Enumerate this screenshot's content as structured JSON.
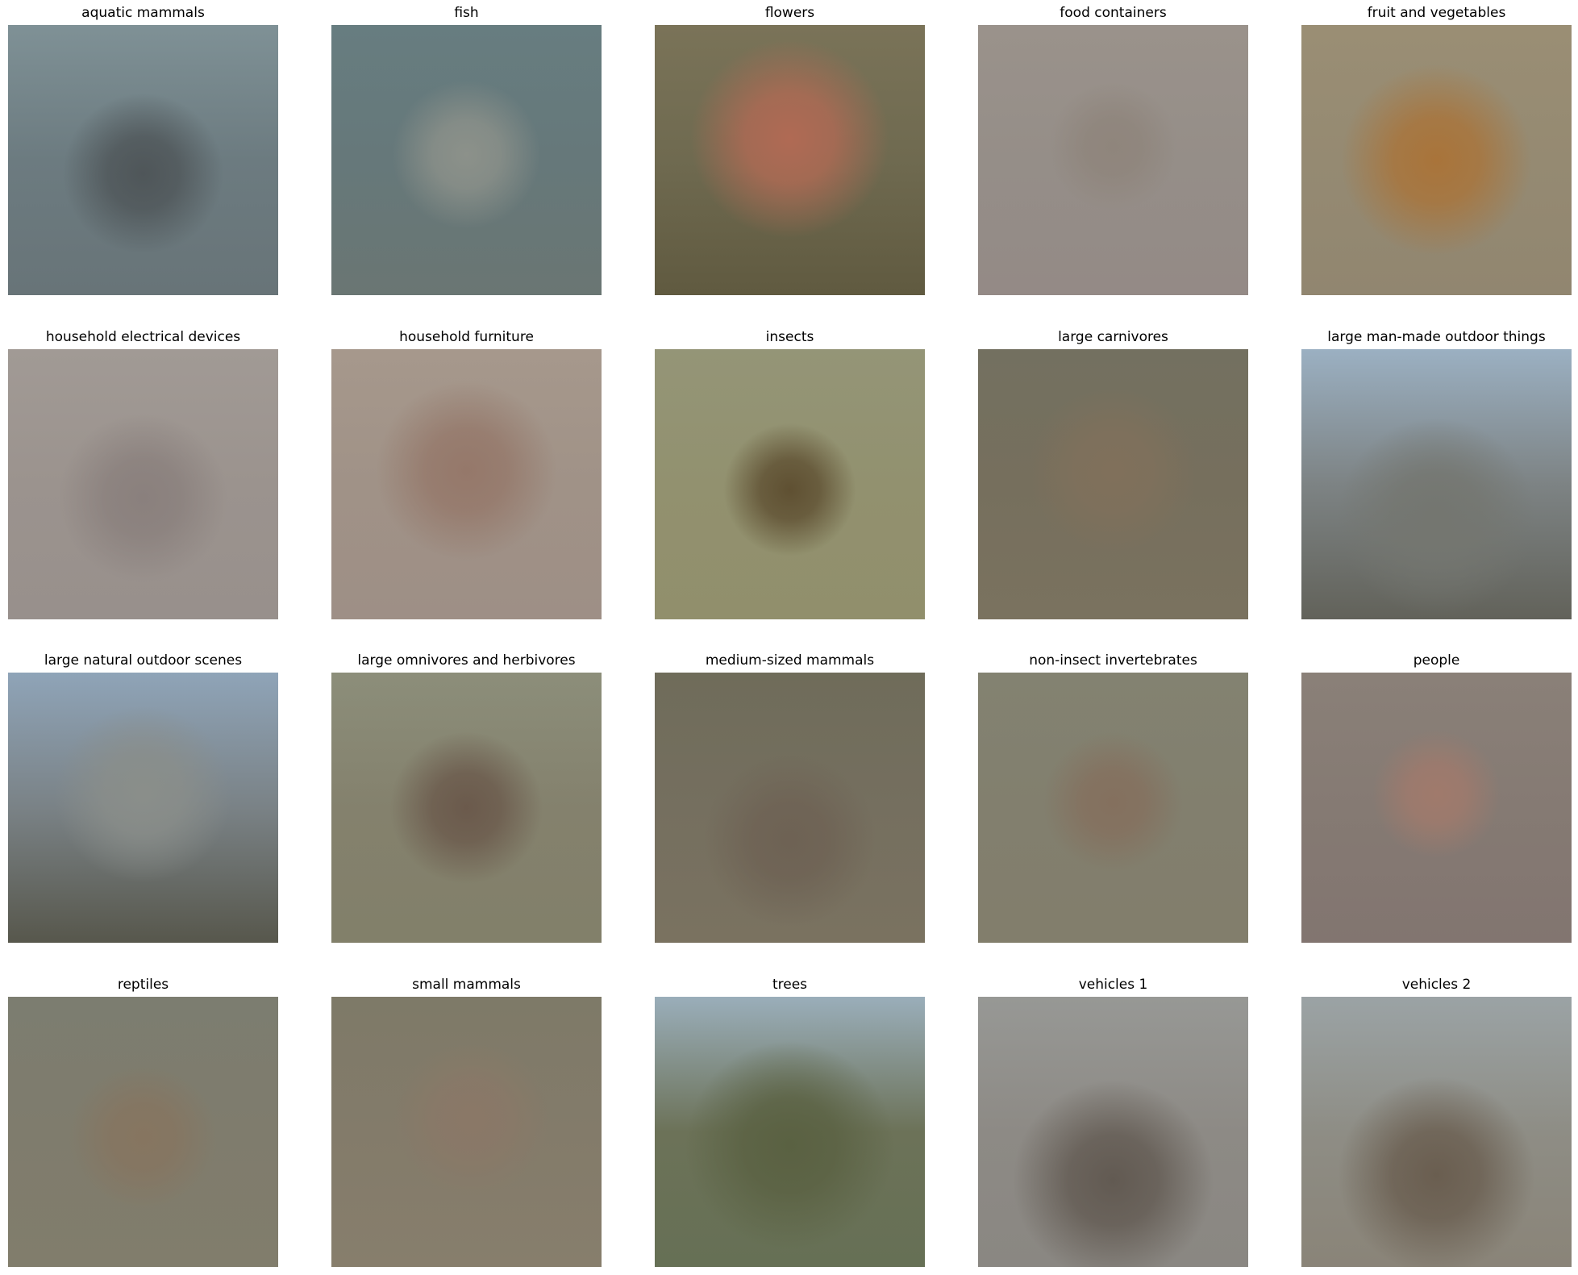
{
  "panels": [
    {
      "title": "aquatic mammals",
      "bg": "#6c7b80",
      "top": "#7f9196",
      "bottom": "#687478",
      "blob": "#4f5659",
      "blob_x": 50,
      "blob_y": 55,
      "blob_r": 40
    },
    {
      "title": "fish",
      "bg": "#66787a",
      "top": "#677d80",
      "bottom": "#6a7673",
      "blob": "#8c918a",
      "blob_x": 50,
      "blob_y": 48,
      "blob_r": 38
    },
    {
      "title": "flowers",
      "bg": "#6f6a50",
      "top": "#7a7358",
      "bottom": "#605a40",
      "blob": "#b06a54",
      "blob_x": 50,
      "blob_y": 42,
      "blob_r": 48
    },
    {
      "title": "food containers",
      "bg": "#958e88",
      "top": "#9a928b",
      "bottom": "#948a86",
      "blob": "#8f857c",
      "blob_x": 50,
      "blob_y": 45,
      "blob_r": 32
    },
    {
      "title": "fruit and vegetables",
      "bg": "#958a72",
      "top": "#9a8e74",
      "bottom": "#918670",
      "blob": "#a9743a",
      "blob_x": 50,
      "blob_y": 50,
      "blob_r": 50
    },
    {
      "title": "household electrical devices",
      "bg": "#9b938e",
      "top": "#a19a95",
      "bottom": "#98908c",
      "blob": "#8a807d",
      "blob_x": 50,
      "blob_y": 55,
      "blob_r": 42
    },
    {
      "title": "household furniture",
      "bg": "#a09287",
      "top": "#a6988c",
      "bottom": "#9e8f86",
      "blob": "#95786a",
      "blob_x": 50,
      "blob_y": 45,
      "blob_r": 45
    },
    {
      "title": "insects",
      "bg": "#92916f",
      "top": "#949577",
      "bottom": "#918f6c",
      "blob": "#5f5032",
      "blob_x": 50,
      "blob_y": 52,
      "blob_r": 34
    },
    {
      "title": "large carnivores",
      "bg": "#766f5d",
      "top": "#737060",
      "bottom": "#7a725f",
      "blob": "#80705b",
      "blob_x": 50,
      "blob_y": 45,
      "blob_r": 42
    },
    {
      "title": "large man-made outdoor things",
      "bg": "#7d8384",
      "top": "#9bb0c2",
      "bottom": "#62625a",
      "blob": "#747670",
      "blob_x": 50,
      "blob_y": 62,
      "blob_r": 46
    },
    {
      "title": "large natural outdoor scenes",
      "bg": "#7a8286",
      "top": "#8fa4b8",
      "bottom": "#57574c",
      "blob": "#8a8e8a",
      "blob_x": 50,
      "blob_y": 45,
      "blob_r": 44
    },
    {
      "title": "large omnivores and herbivores",
      "bg": "#84816d",
      "top": "#8c8e7a",
      "bottom": "#82806a",
      "blob": "#6b5a4c",
      "blob_x": 50,
      "blob_y": 50,
      "blob_r": 40
    },
    {
      "title": "medium-sized mammals",
      "bg": "#756f5f",
      "top": "#6f6c5a",
      "bottom": "#7a7260",
      "blob": "#6e6254",
      "blob_x": 50,
      "blob_y": 62,
      "blob_r": 40
    },
    {
      "title": "non-insect invertebrates",
      "bg": "#827f6e",
      "top": "#838271",
      "bottom": "#827e6c",
      "blob": "#84705e",
      "blob_x": 50,
      "blob_y": 48,
      "blob_r": 36
    },
    {
      "title": "people",
      "bg": "#857a73",
      "top": "#8a8078",
      "bottom": "#827570",
      "blob": "#a07a6c",
      "blob_x": 50,
      "blob_y": 45,
      "blob_r": 32
    },
    {
      "title": "reptiles",
      "bg": "#7f7c6d",
      "top": "#7c7d70",
      "bottom": "#817d6c",
      "blob": "#867560",
      "blob_x": 50,
      "blob_y": 52,
      "blob_r": 38
    },
    {
      "title": "small mammals",
      "bg": "#837b6a",
      "top": "#7e7a68",
      "bottom": "#877e6c",
      "blob": "#8a7867",
      "blob_x": 52,
      "blob_y": 45,
      "blob_r": 38
    },
    {
      "title": "trees",
      "bg": "#6c7258",
      "top": "#9aaeba",
      "bottom": "#667055",
      "blob": "#5a6142",
      "blob_x": 50,
      "blob_y": 55,
      "blob_r": 52
    },
    {
      "title": "vehicles 1",
      "bg": "#8d8a85",
      "top": "#979895",
      "bottom": "#8a8782",
      "blob": "#625a52",
      "blob_x": 50,
      "blob_y": 68,
      "blob_r": 44
    },
    {
      "title": "vehicles 2",
      "bg": "#8e8d85",
      "top": "#9ba3a5",
      "bottom": "#8a8478",
      "blob": "#6a5e50",
      "blob_x": 50,
      "blob_y": 66,
      "blob_r": 44
    }
  ]
}
